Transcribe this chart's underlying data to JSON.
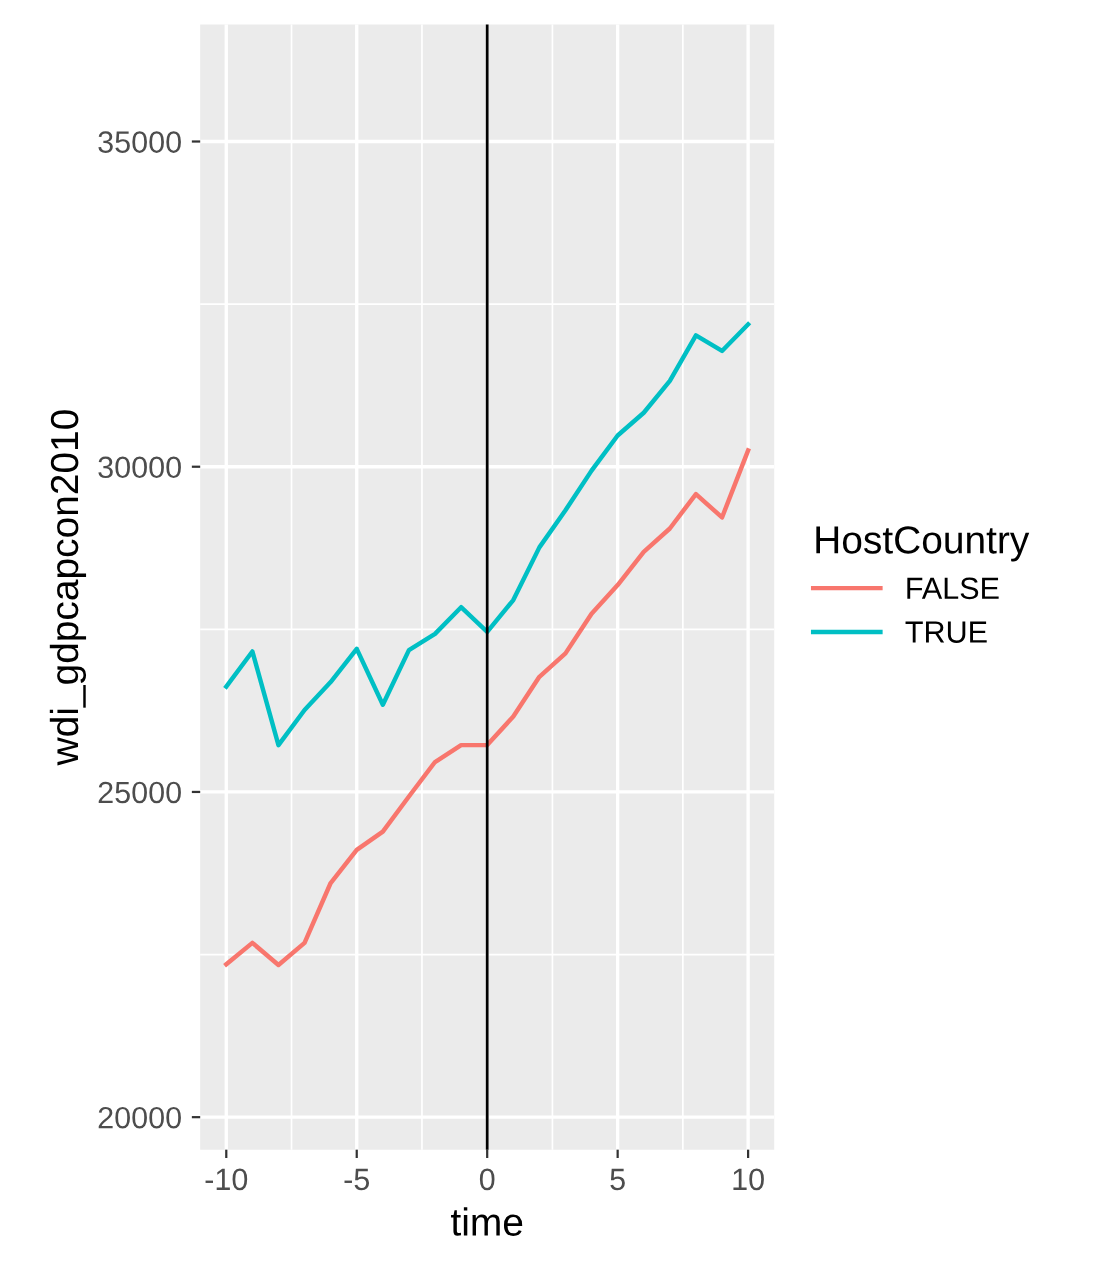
{
  "chart_data": {
    "type": "line",
    "xlabel": "time",
    "ylabel": "wdi_gdpcapcon2010",
    "legend_title": "HostCountry",
    "x": [
      -10,
      -9,
      -8,
      -7,
      -6,
      -5,
      -4,
      -3,
      -2,
      -1,
      0,
      1,
      2,
      3,
      4,
      5,
      6,
      7,
      8,
      9,
      10
    ],
    "series": [
      {
        "name": "FALSE",
        "color": "#f8766d",
        "values": [
          22350,
          22680,
          22340,
          22680,
          23600,
          24110,
          24390,
          24930,
          25460,
          25720,
          25720,
          26160,
          26770,
          27130,
          27740,
          28180,
          28690,
          29050,
          29580,
          29220,
          30250
        ]
      },
      {
        "name": "TRUE",
        "color": "#00bfc4",
        "values": [
          26620,
          27160,
          25720,
          26260,
          26690,
          27200,
          26340,
          27180,
          27430,
          27840,
          27460,
          27950,
          28760,
          29330,
          29940,
          30480,
          30830,
          31320,
          32020,
          31780,
          32190
        ]
      }
    ],
    "xlim": [
      -11,
      11
    ],
    "ylim": [
      19500,
      36800
    ],
    "xticks": [
      -10,
      -5,
      0,
      5,
      10
    ],
    "yticks": [
      20000,
      25000,
      30000,
      35000
    ],
    "ref_lines": [
      {
        "axis": "x",
        "value": 0,
        "color": "#000000"
      }
    ],
    "grid": true,
    "legend": "right"
  }
}
